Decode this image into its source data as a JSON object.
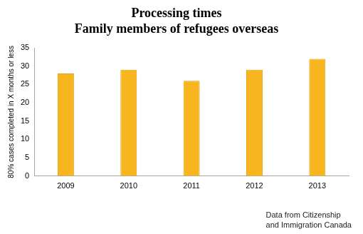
{
  "chart_data": {
    "type": "bar",
    "title": [
      "Processing times",
      "Family members of refugees overseas"
    ],
    "y_label": "80% cases completed in X months or less",
    "annotation": [
      "Data from Citizenship",
      "and Immigration Canada"
    ],
    "categories": [
      "2009",
      "2010",
      "2011",
      "2012",
      "2013"
    ],
    "values": [
      28,
      29,
      26,
      29,
      32
    ],
    "color": "#f7b61e",
    "ylim": [
      0,
      35
    ],
    "yticks": [
      0,
      5,
      10,
      15,
      20,
      25,
      30,
      35
    ],
    "grid": false
  }
}
